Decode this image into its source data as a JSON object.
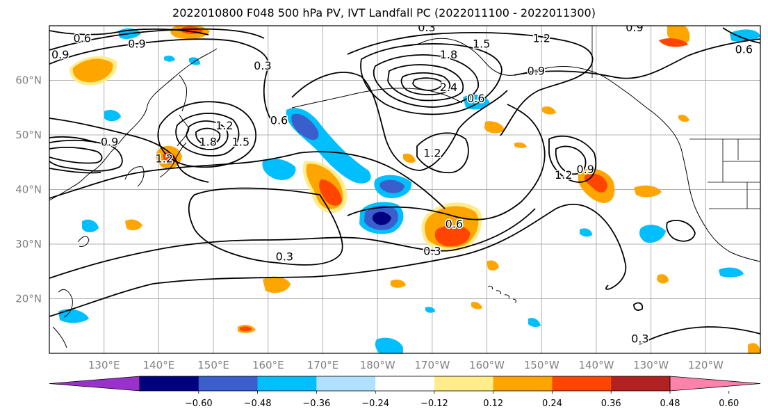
{
  "title": "2022010800 F048 500 hPa PV, IVT Landfall PC (2022011100 - 2022011300)",
  "map": {
    "lon_range": [
      120,
      250
    ],
    "lat_range": [
      10,
      70
    ],
    "lon_ticks": [
      {
        "lon": 130,
        "label": "130°E"
      },
      {
        "lon": 140,
        "label": "140°E"
      },
      {
        "lon": 150,
        "label": "150°E"
      },
      {
        "lon": 160,
        "label": "160°E"
      },
      {
        "lon": 170,
        "label": "170°E"
      },
      {
        "lon": 180,
        "label": "180°W"
      },
      {
        "lon": 190,
        "label": "170°W"
      },
      {
        "lon": 200,
        "label": "160°W"
      },
      {
        "lon": 210,
        "label": "150°W"
      },
      {
        "lon": 220,
        "label": "140°W"
      },
      {
        "lon": 230,
        "label": "130°W"
      },
      {
        "lon": 240,
        "label": "120°W"
      }
    ],
    "lat_ticks": [
      {
        "lat": 20,
        "label": "20°N"
      },
      {
        "lat": 30,
        "label": "30°N"
      },
      {
        "lat": 40,
        "label": "40°N"
      },
      {
        "lat": 50,
        "label": "50°N"
      },
      {
        "lat": 60,
        "label": "60°N"
      }
    ],
    "contour_labels": [
      {
        "text": "0.6",
        "lon": 126,
        "lat": 67
      },
      {
        "text": "0.9",
        "lon": 122,
        "lat": 64
      },
      {
        "text": "0.9",
        "lon": 136,
        "lat": 66
      },
      {
        "text": "0.9",
        "lon": 131,
        "lat": 48
      },
      {
        "text": "0.3",
        "lon": 159,
        "lat": 62
      },
      {
        "text": "0.6",
        "lon": 162,
        "lat": 52
      },
      {
        "text": "1.2",
        "lon": 152,
        "lat": 51
      },
      {
        "text": "1.8",
        "lon": 149,
        "lat": 48
      },
      {
        "text": "1.5",
        "lon": 155,
        "lat": 48
      },
      {
        "text": "1.2",
        "lon": 141,
        "lat": 45
      },
      {
        "text": "0.3",
        "lon": 189,
        "lat": 69
      },
      {
        "text": "1.8",
        "lon": 193,
        "lat": 64
      },
      {
        "text": "1.5",
        "lon": 199,
        "lat": 66
      },
      {
        "text": "1.2",
        "lon": 210,
        "lat": 67
      },
      {
        "text": "0.9",
        "lon": 227,
        "lat": 69
      },
      {
        "text": "0.9",
        "lon": 209,
        "lat": 61
      },
      {
        "text": "2.4",
        "lon": 193,
        "lat": 58
      },
      {
        "text": "1.2",
        "lon": 190,
        "lat": 46
      },
      {
        "text": "0.6",
        "lon": 198,
        "lat": 56
      },
      {
        "text": "1.2",
        "lon": 214,
        "lat": 42
      },
      {
        "text": "0.9",
        "lon": 218,
        "lat": 43
      },
      {
        "text": "0.6",
        "lon": 194,
        "lat": 33
      },
      {
        "text": "0.3",
        "lon": 190,
        "lat": 28
      },
      {
        "text": "0.3",
        "lon": 163,
        "lat": 27
      },
      {
        "text": "0.3",
        "lon": 228,
        "lat": 12
      },
      {
        "text": "0.6",
        "lon": 247,
        "lat": 65
      }
    ]
  },
  "colorbar": {
    "colors": [
      "#9932cc",
      "#000080",
      "#3a5fcd",
      "#00bfff",
      "#b0e2ff",
      "#ffffff",
      "#ffec8b",
      "#ffa500",
      "#ff4500",
      "#b22222",
      "#ff82ab"
    ],
    "tick_labels": [
      "−0.60",
      "−0.48",
      "−0.36",
      "−0.24",
      "−0.12",
      "0.12",
      "0.24",
      "0.36",
      "0.48",
      "0.60"
    ]
  }
}
